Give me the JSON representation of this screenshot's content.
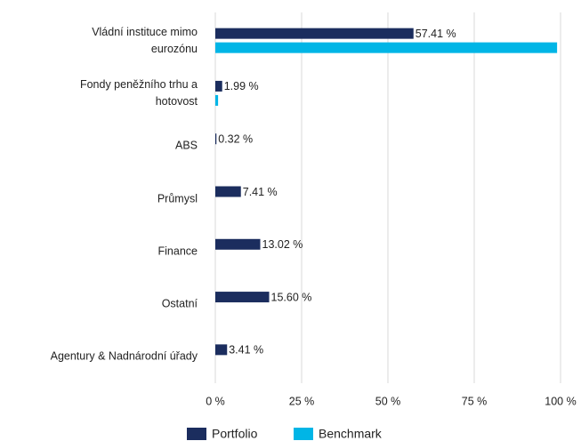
{
  "chart_data": {
    "type": "hbar",
    "categories": [
      "Vládní instituce mimo\neurozónu",
      "Fondy peněžního trhu a\nhotovost",
      "ABS",
      "Průmysl",
      "Finance",
      "Ostatní",
      "Agentury & Nadnárodní úřady"
    ],
    "series": [
      {
        "name": "Portfolio",
        "color": "#1b2d5e",
        "values": [
          57.41,
          1.99,
          0.32,
          7.41,
          13.02,
          15.6,
          3.41
        ],
        "value_labels": [
          "57.41 %",
          "1.99 %",
          "0.32 %",
          "7.41 %",
          "13.02 %",
          "15.60 %",
          "3.41 %"
        ]
      },
      {
        "name": "Benchmark",
        "color": "#00b5e6",
        "values": [
          99,
          0.8,
          null,
          null,
          null,
          null,
          null
        ]
      }
    ],
    "xlim": [
      0,
      100
    ],
    "xticks": [
      {
        "value": 0,
        "label": "0 %"
      },
      {
        "value": 25,
        "label": "25 %"
      },
      {
        "value": 50,
        "label": "50 %"
      },
      {
        "value": 75,
        "label": "75 %"
      },
      {
        "value": 100,
        "label": "100 %"
      }
    ],
    "grid": true,
    "legend": "bottom"
  }
}
